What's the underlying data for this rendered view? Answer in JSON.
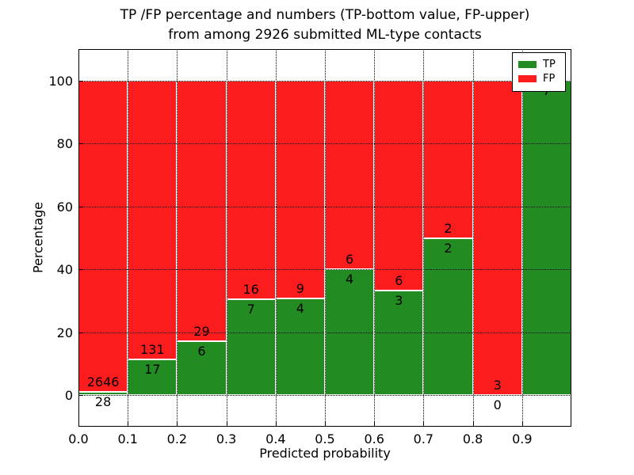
{
  "title": {
    "line1": "TP /FP percentage and numbers (TP-bottom value, FP-upper)",
    "line2": "from among 2926 submitted ML-type contacts"
  },
  "chart_data": {
    "type": "bar",
    "subtype": "stacked-percentage",
    "title": "TP /FP percentage and numbers (TP-bottom value, FP-upper) from among 2926 submitted ML-type contacts",
    "xlabel": "Predicted probability",
    "ylabel": "Percentage",
    "total_contacts": 2926,
    "x_tick_labels": [
      "0.0",
      "0.1",
      "0.2",
      "0.3",
      "0.4",
      "0.5",
      "0.6",
      "0.7",
      "0.8",
      "0.9"
    ],
    "y_ticks": [
      0,
      20,
      40,
      60,
      80,
      100
    ],
    "xlim": [
      0.0,
      1.0
    ],
    "ylim": [
      -10,
      110
    ],
    "grid": "dotted, both axes",
    "legend": {
      "position": "upper right",
      "entries": [
        {
          "label": "TP",
          "color": "#228B22"
        },
        {
          "label": "FP",
          "color": "#FB1D1D"
        }
      ]
    },
    "bins": [
      {
        "x_start": 0.0,
        "x_end": 0.1,
        "tp": 28,
        "fp": 2646,
        "tp_percent": 1.0
      },
      {
        "x_start": 0.1,
        "x_end": 0.2,
        "tp": 17,
        "fp": 131,
        "tp_percent": 11.5
      },
      {
        "x_start": 0.2,
        "x_end": 0.3,
        "tp": 6,
        "fp": 29,
        "tp_percent": 17.1
      },
      {
        "x_start": 0.3,
        "x_end": 0.4,
        "tp": 7,
        "fp": 16,
        "tp_percent": 30.4
      },
      {
        "x_start": 0.4,
        "x_end": 0.5,
        "tp": 4,
        "fp": 9,
        "tp_percent": 30.8
      },
      {
        "x_start": 0.5,
        "x_end": 0.6,
        "tp": 4,
        "fp": 6,
        "tp_percent": 40.0
      },
      {
        "x_start": 0.6,
        "x_end": 0.7,
        "tp": 3,
        "fp": 6,
        "tp_percent": 33.3
      },
      {
        "x_start": 0.7,
        "x_end": 0.8,
        "tp": 2,
        "fp": 2,
        "tp_percent": 50.0
      },
      {
        "x_start": 0.8,
        "x_end": 0.9,
        "tp": 0,
        "fp": 3,
        "tp_percent": 0.0
      },
      {
        "x_start": 0.9,
        "x_end": 1.0,
        "tp": 7,
        "fp": 0,
        "tp_percent": 100.0
      }
    ]
  },
  "colors": {
    "tp": "#228B22",
    "fp": "#FB1D1D",
    "background": "#FFFFFF",
    "text": "#000000",
    "grid": "#000000"
  }
}
